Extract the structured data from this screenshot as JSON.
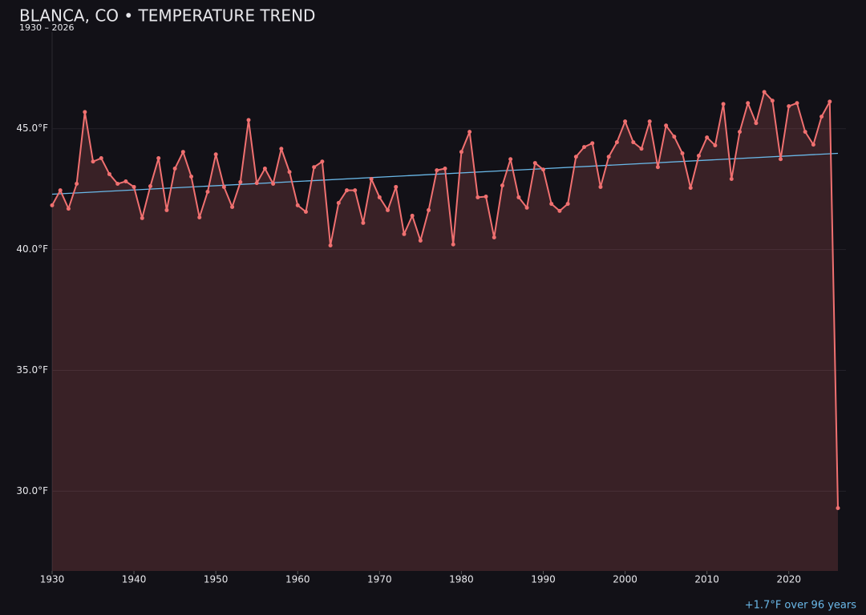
{
  "chart_data": {
    "type": "line",
    "title": "BLANCA, CO • TEMPERATURE TREND",
    "subtitle": "1930 – 2026",
    "x": [
      1930,
      1931,
      1932,
      1933,
      1934,
      1935,
      1936,
      1937,
      1938,
      1939,
      1940,
      1941,
      1942,
      1943,
      1944,
      1945,
      1946,
      1947,
      1948,
      1949,
      1950,
      1951,
      1952,
      1953,
      1954,
      1955,
      1956,
      1957,
      1958,
      1959,
      1960,
      1961,
      1962,
      1963,
      1964,
      1965,
      1966,
      1967,
      1968,
      1969,
      1970,
      1971,
      1972,
      1973,
      1974,
      1975,
      1976,
      1977,
      1978,
      1979,
      1980,
      1981,
      1982,
      1983,
      1984,
      1985,
      1986,
      1987,
      1988,
      1989,
      1990,
      1991,
      1992,
      1993,
      1994,
      1995,
      1996,
      1997,
      1998,
      1999,
      2000,
      2001,
      2002,
      2003,
      2004,
      2005,
      2006,
      2007,
      2008,
      2009,
      2010,
      2011,
      2012,
      2013,
      2014,
      2015,
      2016,
      2017,
      2018,
      2019,
      2020,
      2021,
      2022,
      2023,
      2024,
      2025,
      2026
    ],
    "values": [
      41.83,
      42.45,
      41.69,
      42.72,
      45.69,
      43.64,
      43.78,
      43.12,
      42.72,
      42.82,
      42.59,
      41.3,
      42.62,
      43.78,
      41.63,
      43.35,
      44.04,
      43.02,
      41.33,
      42.39,
      43.94,
      42.59,
      41.76,
      42.79,
      45.36,
      42.75,
      43.35,
      42.72,
      44.17,
      43.21,
      41.83,
      41.56,
      43.41,
      43.64,
      40.17,
      41.93,
      42.45,
      42.45,
      41.1,
      42.92,
      42.16,
      41.63,
      42.59,
      40.64,
      41.4,
      40.37,
      41.63,
      43.28,
      43.35,
      40.21,
      44.04,
      44.87,
      42.16,
      42.19,
      40.5,
      42.65,
      43.74,
      42.16,
      41.73,
      43.58,
      43.31,
      41.89,
      41.6,
      41.89,
      43.84,
      44.24,
      44.4,
      42.59,
      43.84,
      44.44,
      45.3,
      44.44,
      44.17,
      45.3,
      43.41,
      45.13,
      44.67,
      43.98,
      42.55,
      43.88,
      44.64,
      44.31,
      46.02,
      42.92,
      44.87,
      46.06,
      45.23,
      46.52,
      46.16,
      43.74,
      45.93,
      46.06,
      44.87,
      44.34,
      45.5,
      46.12,
      29.3
    ],
    "color": "#f07070",
    "trend": {
      "x": [
        1930,
        2026
      ],
      "values": [
        42.29,
        43.98
      ],
      "color": "#6ab8e8"
    },
    "annotation": "+1.7°F over 96 years",
    "xlim": [
      1930,
      2026
    ],
    "xticks": [
      1930,
      1940,
      1950,
      1960,
      1970,
      1980,
      1990,
      2000,
      2010,
      2020
    ],
    "ylim": [
      26.7,
      49.0
    ],
    "yticks": [
      {
        "value": 30,
        "label": "30.0°F"
      },
      {
        "value": 35,
        "label": "35.0°F"
      },
      {
        "value": 40,
        "label": "40.0°F"
      },
      {
        "value": 45,
        "label": "45.0°F"
      }
    ],
    "grid": true
  }
}
